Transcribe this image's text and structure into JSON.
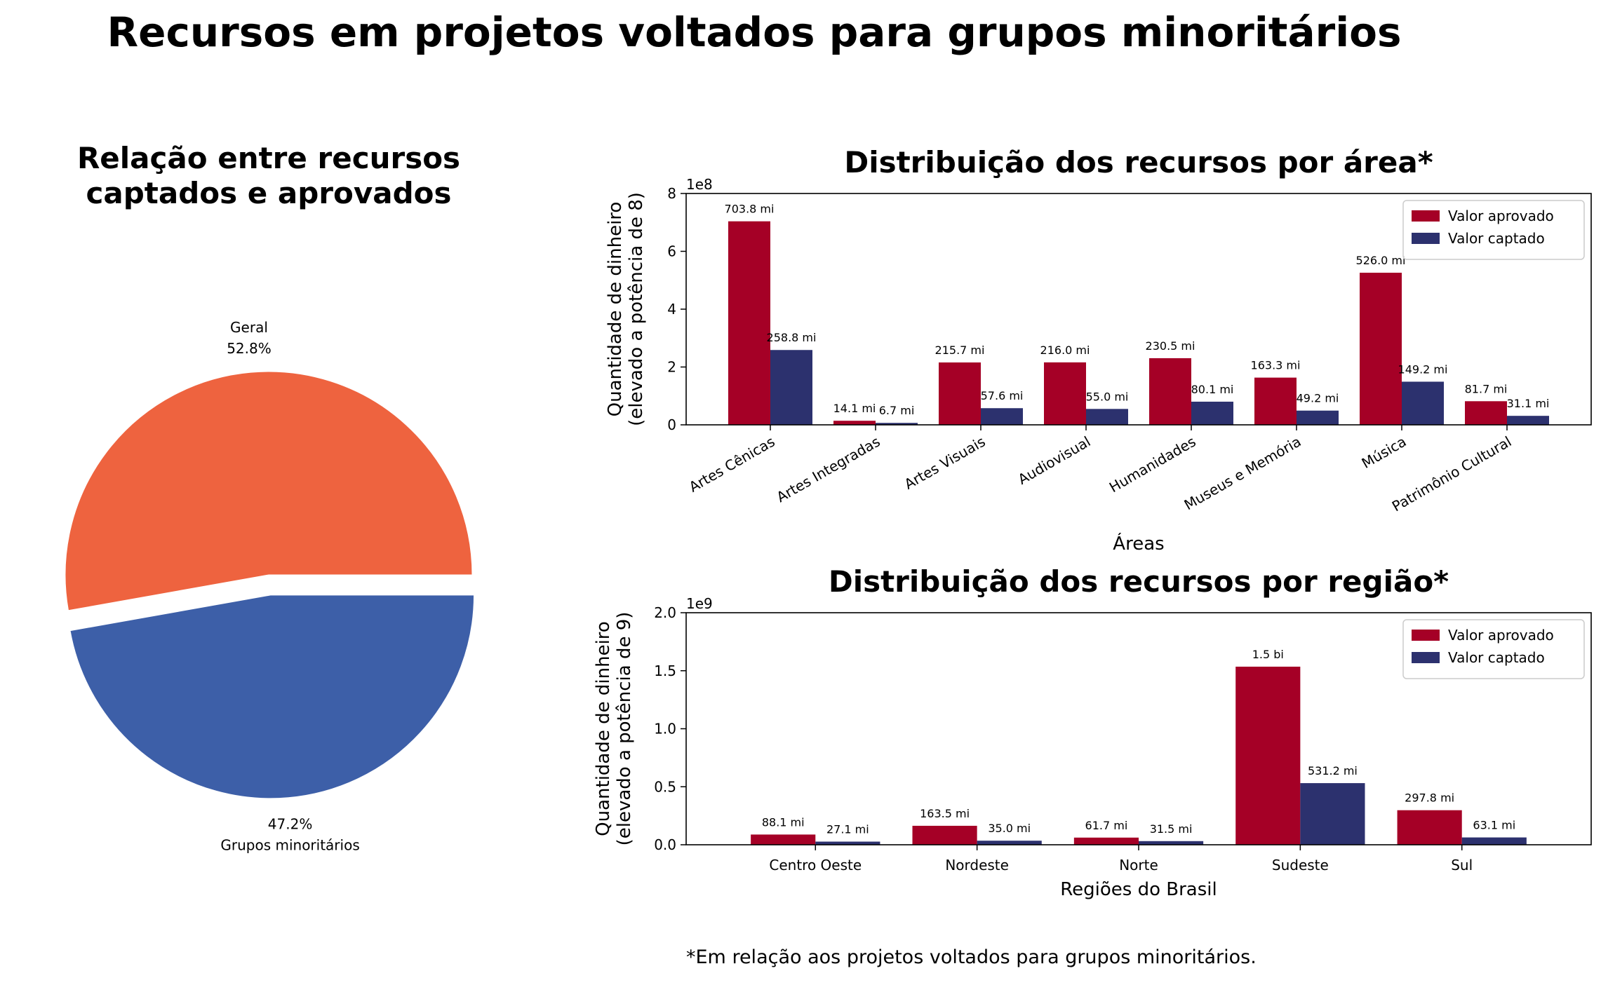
{
  "page": {
    "title": "Recursos em projetos voltados para grupos minoritários",
    "footnote": "*Em relação aos projetos voltados para grupos minoritários."
  },
  "colors": {
    "aprovado": "#a50026",
    "captado": "#2c316e",
    "geral": "#ee633f",
    "minoritarios": "#3d5fa8"
  },
  "chart_data": [
    {
      "type": "pie",
      "title": "Relação entre recursos\ncaptados e aprovados",
      "slices": [
        {
          "label": "Geral",
          "value": 52.8,
          "pct_label": "52.8%",
          "exploded": false
        },
        {
          "label": "Grupos minoritários",
          "value": 47.2,
          "pct_label": "47.2%",
          "exploded": true
        }
      ]
    },
    {
      "type": "bar",
      "title": "Distribuição dos recursos por área*",
      "xlabel": "Áreas",
      "ylabel": "Quantidade de dinheiro\n(elevado a potência de 8)",
      "offset_label": "1e8",
      "ylim": [
        0,
        8
      ],
      "yticks": [
        "0",
        "2",
        "4",
        "6",
        "8"
      ],
      "legend_position": "top-right",
      "categories": [
        "Artes Cênicas",
        "Artes Integradas",
        "Artes Visuais",
        "Audiovisual",
        "Humanidades",
        "Museus e Memória",
        "Música",
        "Patrimônio Cultural"
      ],
      "series": [
        {
          "name": "Valor aprovado",
          "values": [
            7.038,
            0.141,
            2.157,
            2.16,
            2.305,
            1.633,
            5.26,
            0.817
          ],
          "labels": [
            "703.8 mi",
            "14.1 mi",
            "215.7 mi",
            "216.0 mi",
            "230.5 mi",
            "163.3 mi",
            "526.0 mi",
            "81.7 mi"
          ]
        },
        {
          "name": "Valor captado",
          "values": [
            2.588,
            0.067,
            0.576,
            0.55,
            0.801,
            0.492,
            1.492,
            0.311
          ],
          "labels": [
            "258.8 mi",
            "6.7 mi",
            "57.6 mi",
            "55.0 mi",
            "80.1 mi",
            "49.2 mi",
            "149.2 mi",
            "31.1 mi"
          ]
        }
      ]
    },
    {
      "type": "bar",
      "title": "Distribuição dos recursos por região*",
      "xlabel": "Regiões do Brasil",
      "ylabel": "Quantidade de dinheiro\n(elevado a potência de 9)",
      "offset_label": "1e9",
      "ylim": [
        0,
        2
      ],
      "yticks": [
        "0.0",
        "0.5",
        "1.0",
        "1.5",
        "2.0"
      ],
      "legend_position": "top-right",
      "categories": [
        "Centro Oeste",
        "Nordeste",
        "Norte",
        "Sudeste",
        "Sul"
      ],
      "series": [
        {
          "name": "Valor aprovado",
          "values": [
            0.0881,
            0.1635,
            0.0617,
            1.535,
            0.2978
          ],
          "labels": [
            "88.1 mi",
            "163.5 mi",
            "61.7 mi",
            "1.5 bi",
            "297.8 mi"
          ]
        },
        {
          "name": "Valor captado",
          "values": [
            0.0271,
            0.035,
            0.0315,
            0.5312,
            0.0631
          ],
          "labels": [
            "27.1 mi",
            "35.0 mi",
            "31.5 mi",
            "531.2 mi",
            "63.1 mi"
          ]
        }
      ]
    }
  ]
}
